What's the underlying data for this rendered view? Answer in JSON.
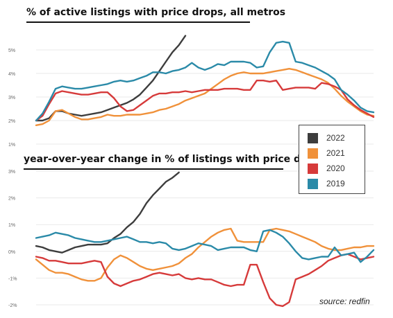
{
  "chart_data": [
    {
      "type": "line",
      "title": "% of active listings with price drops, all metros",
      "ylim": [
        1,
        6
      ],
      "yticks": [
        "1%",
        "2%",
        "3%",
        "4%",
        "5%"
      ],
      "ytick_values": [
        1,
        2,
        3,
        4,
        5
      ],
      "x": [
        0,
        1,
        2,
        3,
        4,
        5,
        6,
        7,
        8,
        9,
        10,
        11,
        12,
        13,
        14,
        15,
        16,
        17,
        18,
        19,
        20,
        21,
        22,
        23,
        24,
        25,
        26,
        27,
        28,
        29,
        30,
        31,
        32,
        33,
        34,
        35,
        36,
        37,
        38,
        39,
        40,
        41,
        42,
        43,
        44,
        45,
        46,
        47,
        48,
        49,
        50,
        51,
        52
      ],
      "grid": true,
      "series": [
        {
          "name": "2022",
          "color": "#3d3d3d",
          "values": [
            2.0,
            2.0,
            2.1,
            2.4,
            2.4,
            2.3,
            2.25,
            2.2,
            2.25,
            2.3,
            2.35,
            2.45,
            2.55,
            2.65,
            2.75,
            2.9,
            3.1,
            3.4,
            3.7,
            4.1,
            4.5,
            4.9,
            5.2,
            5.6,
            null,
            null,
            null,
            null,
            null,
            null,
            null,
            null,
            null,
            null,
            null,
            null,
            null,
            null,
            null,
            null,
            null,
            null,
            null,
            null,
            null,
            null,
            null,
            null,
            null,
            null,
            null,
            null,
            null
          ]
        },
        {
          "name": "2021",
          "color": "#f0913a",
          "values": [
            1.8,
            1.85,
            2.0,
            2.4,
            2.45,
            2.3,
            2.15,
            2.05,
            2.05,
            2.1,
            2.15,
            2.25,
            2.2,
            2.2,
            2.25,
            2.25,
            2.25,
            2.3,
            2.35,
            2.45,
            2.5,
            2.6,
            2.7,
            2.85,
            2.95,
            3.05,
            3.15,
            3.35,
            3.55,
            3.75,
            3.9,
            4.0,
            4.05,
            4.0,
            4.0,
            4.0,
            4.05,
            4.1,
            4.15,
            4.2,
            4.15,
            4.05,
            3.95,
            3.85,
            3.75,
            3.6,
            3.35,
            3.05,
            2.8,
            2.6,
            2.4,
            2.25,
            2.2
          ]
        },
        {
          "name": "2020",
          "color": "#d63a3a",
          "values": [
            2.0,
            2.2,
            2.7,
            3.15,
            3.25,
            3.2,
            3.15,
            3.1,
            3.1,
            3.15,
            3.2,
            3.2,
            2.95,
            2.6,
            2.4,
            2.45,
            2.65,
            2.85,
            3.05,
            3.15,
            3.15,
            3.2,
            3.2,
            3.25,
            3.2,
            3.25,
            3.3,
            3.3,
            3.3,
            3.35,
            3.35,
            3.35,
            3.3,
            3.3,
            3.7,
            3.7,
            3.65,
            3.7,
            3.3,
            3.35,
            3.4,
            3.4,
            3.4,
            3.35,
            3.6,
            3.55,
            3.45,
            3.3,
            2.9,
            2.65,
            2.45,
            2.3,
            2.15
          ]
        },
        {
          "name": "2019",
          "color": "#2a8aa8",
          "values": [
            2.0,
            2.3,
            2.8,
            3.35,
            3.45,
            3.4,
            3.35,
            3.35,
            3.4,
            3.45,
            3.5,
            3.55,
            3.65,
            3.7,
            3.65,
            3.7,
            3.8,
            3.9,
            4.05,
            4.05,
            4.0,
            4.1,
            4.15,
            4.25,
            4.45,
            4.25,
            4.15,
            4.25,
            4.4,
            4.35,
            4.5,
            4.5,
            4.5,
            4.45,
            4.25,
            4.3,
            4.9,
            5.3,
            5.35,
            5.3,
            4.5,
            4.45,
            4.35,
            4.25,
            4.1,
            3.95,
            3.75,
            3.3,
            3.1,
            2.85,
            2.55,
            2.4,
            2.35
          ]
        }
      ]
    },
    {
      "type": "line",
      "title": "year-over-year change in % of listings with price drops",
      "ylim": [
        -2,
        3
      ],
      "yticks": [
        "3%",
        "2%",
        "1%",
        "0%",
        "-1%",
        "-2%"
      ],
      "ytick_values": [
        3,
        2,
        1,
        0,
        -1,
        -2
      ],
      "x": [
        0,
        1,
        2,
        3,
        4,
        5,
        6,
        7,
        8,
        9,
        10,
        11,
        12,
        13,
        14,
        15,
        16,
        17,
        18,
        19,
        20,
        21,
        22,
        23,
        24,
        25,
        26,
        27,
        28,
        29,
        30,
        31,
        32,
        33,
        34,
        35,
        36,
        37,
        38,
        39,
        40,
        41,
        42,
        43,
        44,
        45,
        46,
        47,
        48,
        49,
        50,
        51,
        52
      ],
      "grid": true,
      "series": [
        {
          "name": "2022",
          "color": "#3d3d3d",
          "values": [
            0.2,
            0.15,
            0.05,
            0.0,
            -0.05,
            0.05,
            0.15,
            0.2,
            0.25,
            0.25,
            0.25,
            0.3,
            0.5,
            0.65,
            0.9,
            1.1,
            1.4,
            1.8,
            2.1,
            2.35,
            2.6,
            2.75,
            2.95,
            null,
            null,
            null,
            null,
            null,
            null,
            null,
            null,
            null,
            null,
            null,
            null,
            null,
            null,
            null,
            null,
            null,
            null,
            null,
            null,
            null,
            null,
            null,
            null,
            null,
            null,
            null,
            null,
            null,
            null
          ]
        },
        {
          "name": "2021",
          "color": "#f0913a",
          "values": [
            -0.3,
            -0.5,
            -0.7,
            -0.8,
            -0.8,
            -0.85,
            -0.95,
            -1.05,
            -1.1,
            -1.1,
            -1.0,
            -0.6,
            -0.3,
            -0.15,
            -0.25,
            -0.4,
            -0.55,
            -0.65,
            -0.7,
            -0.65,
            -0.6,
            -0.55,
            -0.45,
            -0.25,
            -0.1,
            0.15,
            0.35,
            0.55,
            0.7,
            0.8,
            0.85,
            0.4,
            0.35,
            0.35,
            0.35,
            0.35,
            0.8,
            0.85,
            0.8,
            0.75,
            0.65,
            0.55,
            0.45,
            0.35,
            0.2,
            0.1,
            0.05,
            0.05,
            0.1,
            0.15,
            0.15,
            0.2,
            0.2
          ]
        },
        {
          "name": "2020",
          "color": "#d63a3a",
          "values": [
            -0.2,
            -0.25,
            -0.35,
            -0.35,
            -0.4,
            -0.45,
            -0.45,
            -0.45,
            -0.4,
            -0.35,
            -0.4,
            -0.95,
            -1.2,
            -1.3,
            -1.2,
            -1.1,
            -1.05,
            -0.95,
            -0.85,
            -0.8,
            -0.85,
            -0.9,
            -0.85,
            -1.0,
            -1.05,
            -1.0,
            -1.05,
            -1.05,
            -1.15,
            -1.25,
            -1.3,
            -1.25,
            -1.25,
            -0.5,
            -0.5,
            -1.15,
            -1.75,
            -2.0,
            -2.05,
            -1.9,
            -1.05,
            -0.95,
            -0.85,
            -0.7,
            -0.55,
            -0.35,
            -0.25,
            -0.15,
            -0.1,
            -0.2,
            -0.3,
            -0.25,
            -0.2
          ]
        },
        {
          "name": "2019",
          "color": "#2a8aa8",
          "values": [
            0.5,
            0.55,
            0.6,
            0.7,
            0.65,
            0.6,
            0.5,
            0.45,
            0.4,
            0.35,
            0.35,
            0.4,
            0.45,
            0.5,
            0.55,
            0.45,
            0.35,
            0.35,
            0.3,
            0.35,
            0.3,
            0.1,
            0.05,
            0.1,
            0.2,
            0.3,
            0.25,
            0.2,
            0.05,
            0.1,
            0.15,
            0.15,
            0.15,
            0.05,
            0.0,
            0.75,
            0.8,
            0.7,
            0.55,
            0.3,
            0.0,
            -0.25,
            -0.3,
            -0.25,
            -0.2,
            -0.2,
            0.15,
            -0.15,
            -0.1,
            -0.05,
            -0.4,
            -0.2,
            0.05
          ]
        }
      ]
    }
  ],
  "legend": {
    "items": [
      {
        "label": "2022",
        "color": "#3d3d3d"
      },
      {
        "label": "2021",
        "color": "#f0913a"
      },
      {
        "label": "2020",
        "color": "#d63a3a"
      },
      {
        "label": "2019",
        "color": "#2a8aa8"
      }
    ]
  },
  "source": "source: redfin",
  "colors": {
    "grid": "#e9e9e9",
    "tick_text": "#666666",
    "title": "#111111"
  }
}
